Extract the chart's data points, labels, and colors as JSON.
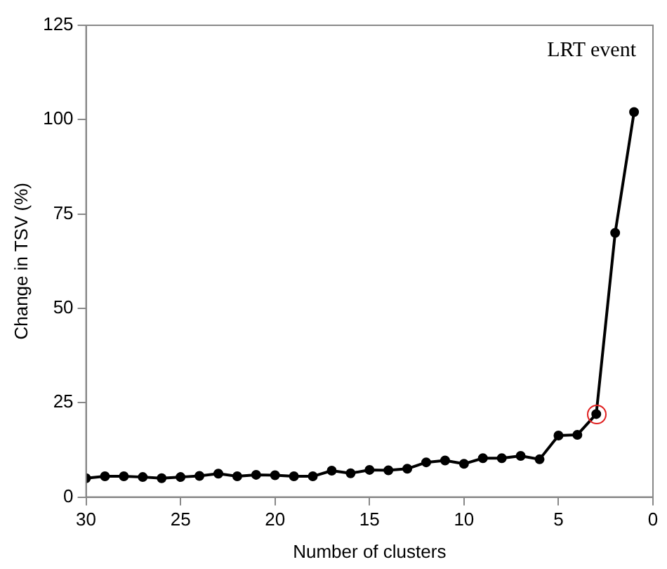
{
  "chart_data": {
    "type": "line",
    "xlabel": "Number of clusters",
    "ylabel": "Change in TSV (%)",
    "annotations": [
      "LRT event"
    ],
    "x": [
      30,
      29,
      28,
      27,
      26,
      25,
      24,
      23,
      22,
      21,
      20,
      19,
      18,
      17,
      16,
      15,
      14,
      13,
      12,
      11,
      10,
      9,
      8,
      7,
      6,
      5,
      4,
      3,
      2,
      1
    ],
    "series": [
      {
        "color": "#000000",
        "values": [
          5,
          5.5,
          5.5,
          5.3,
          5,
          5.3,
          5.6,
          6.2,
          5.5,
          5.9,
          5.8,
          5.5,
          5.5,
          7,
          6.3,
          7.2,
          7.1,
          7.5,
          9.2,
          9.7,
          8.8,
          10.3,
          10.3,
          10.9,
          10,
          16.3,
          16.5,
          22,
          70,
          102
        ]
      }
    ],
    "xlim": [
      30,
      0
    ],
    "xticks": [
      30,
      25,
      20,
      15,
      10,
      5,
      0
    ],
    "ylim": [
      0,
      125
    ],
    "yticks": [
      0,
      25,
      50,
      75,
      100,
      125
    ],
    "grid": false,
    "legend": false,
    "marker": "circle",
    "line_style": "solid"
  }
}
